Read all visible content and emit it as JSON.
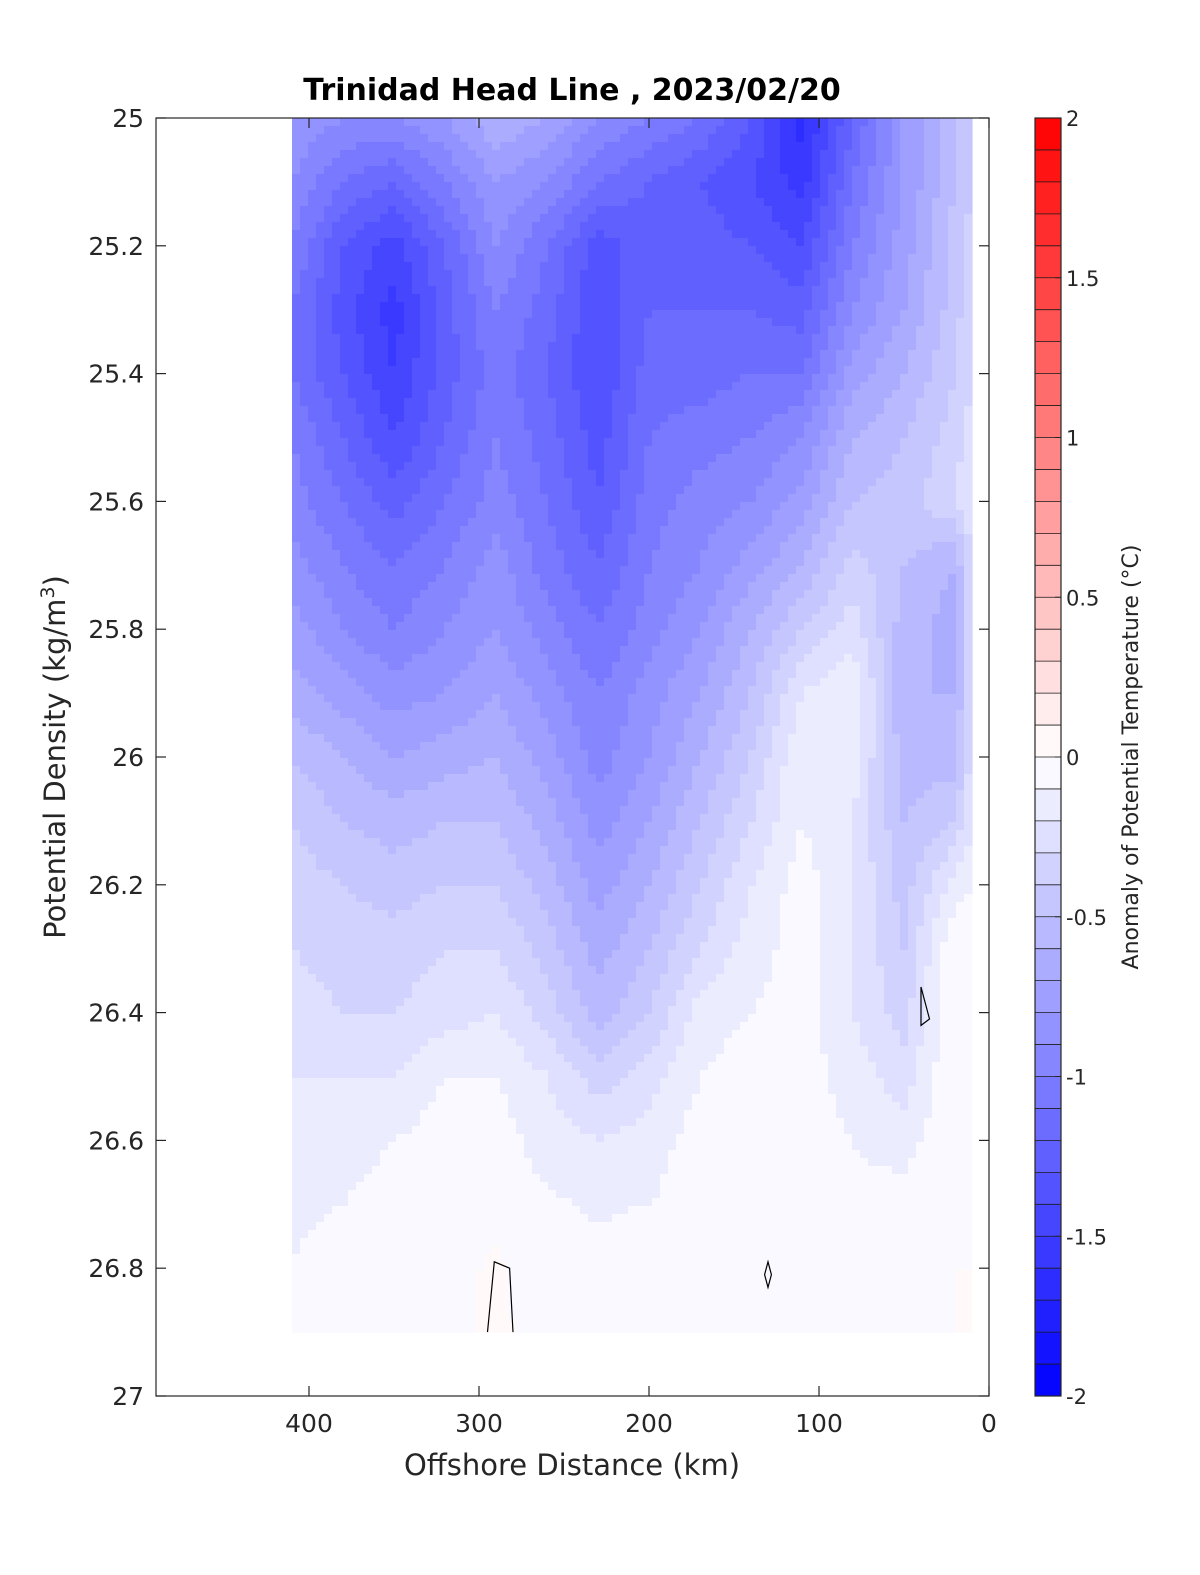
{
  "chart_data": {
    "type": "heatmap",
    "subtype": "filled-contour",
    "title": "Trinidad Head Line , 2023/02/20",
    "xlabel": "Offshore Distance (km)",
    "ylabel": "Potential Density (kg/m",
    "ylabel_sup": "3",
    "ylabel_close": ")",
    "colorbar_label": "Anomaly of Potential Temperature (°C)",
    "x_reversed": true,
    "y_reversed": true,
    "xlim": [
      490,
      0
    ],
    "ylim": [
      25,
      27
    ],
    "xticks": [
      400,
      300,
      200,
      100,
      0
    ],
    "yticks": [
      "25",
      "25.2",
      "25.4",
      "25.6",
      "25.8",
      "26",
      "26.2",
      "26.4",
      "26.6",
      "26.8",
      "27"
    ],
    "yticks_values": [
      25,
      25.2,
      25.4,
      25.6,
      25.8,
      26,
      26.2,
      26.4,
      26.6,
      26.8,
      27
    ],
    "colorbar": {
      "min": -2,
      "max": 2,
      "step": 0.1,
      "ticks": [
        "-2",
        "-1.5",
        "-1",
        "-0.5",
        "0",
        "0.5",
        "1",
        "1.5",
        "2"
      ],
      "ticks_values": [
        -2,
        -1.5,
        -1,
        -0.5,
        0,
        0.5,
        1,
        1.5,
        2
      ],
      "colormap": "blue-white-red",
      "min_color": "#0000ff",
      "mid_color": "#ffffff",
      "max_color": "#ff0000"
    },
    "data_extent": {
      "x_min": 10,
      "x_max": 410,
      "y_min": 25,
      "y_max": 26.9
    },
    "x": [
      410,
      380,
      350,
      320,
      290,
      260,
      230,
      200,
      170,
      140,
      110,
      80,
      50,
      20,
      10
    ],
    "y": [
      25.0,
      25.1,
      25.2,
      25.3,
      25.4,
      25.5,
      25.6,
      25.7,
      25.8,
      25.9,
      26.0,
      26.1,
      26.2,
      26.3,
      26.4,
      26.5,
      26.6,
      26.7,
      26.8,
      26.9
    ],
    "z": [
      [
        -0.8,
        -0.9,
        -0.9,
        -0.8,
        -0.6,
        -0.7,
        -0.9,
        -1.0,
        -1.1,
        -1.3,
        -1.65,
        -1.2,
        -0.8,
        -0.5,
        -0.4
      ],
      [
        -0.9,
        -1.1,
        -1.2,
        -1.0,
        -0.8,
        -0.9,
        -1.1,
        -1.2,
        -1.3,
        -1.4,
        -1.55,
        -1.1,
        -0.8,
        -0.5,
        -0.4
      ],
      [
        -1.0,
        -1.3,
        -1.45,
        -1.2,
        -0.9,
        -1.1,
        -1.35,
        -1.25,
        -1.25,
        -1.3,
        -1.4,
        -1.0,
        -0.75,
        -0.45,
        -0.35
      ],
      [
        -1.1,
        -1.35,
        -1.55,
        -1.25,
        -1.0,
        -1.15,
        -1.4,
        -1.2,
        -1.2,
        -1.2,
        -1.25,
        -0.9,
        -0.7,
        -0.45,
        -0.3
      ],
      [
        -1.1,
        -1.3,
        -1.5,
        -1.25,
        -1.05,
        -1.2,
        -1.4,
        -1.15,
        -1.15,
        -1.1,
        -1.1,
        -0.75,
        -0.6,
        -0.4,
        -0.3
      ],
      [
        -1.0,
        -1.2,
        -1.4,
        -1.2,
        -1.0,
        -1.15,
        -1.35,
        -1.1,
        -1.05,
        -1.0,
        -0.9,
        -0.6,
        -0.5,
        -0.35,
        -0.25
      ],
      [
        -0.95,
        -1.1,
        -1.25,
        -1.1,
        -0.95,
        -1.1,
        -1.3,
        -1.05,
        -0.95,
        -0.9,
        -0.75,
        -0.5,
        -0.45,
        -0.3,
        -0.2
      ],
      [
        -0.85,
        -1.0,
        -1.1,
        -1.0,
        -0.85,
        -1.05,
        -1.2,
        -1.0,
        -0.9,
        -0.75,
        -0.6,
        -0.35,
        -0.5,
        -0.6,
        -0.3
      ],
      [
        -0.75,
        -0.9,
        -1.0,
        -0.9,
        -0.8,
        -0.95,
        -1.1,
        -0.95,
        -0.8,
        -0.6,
        -0.4,
        -0.25,
        -0.55,
        -0.65,
        -0.3
      ],
      [
        -0.65,
        -0.75,
        -0.85,
        -0.8,
        -0.7,
        -0.85,
        -1.0,
        -0.85,
        -0.7,
        -0.5,
        -0.2,
        -0.1,
        -0.6,
        -0.6,
        -0.3
      ],
      [
        -0.5,
        -0.6,
        -0.7,
        -0.65,
        -0.6,
        -0.75,
        -0.95,
        -0.8,
        -0.6,
        -0.4,
        -0.1,
        -0.15,
        -0.55,
        -0.55,
        -0.25
      ],
      [
        -0.4,
        -0.5,
        -0.55,
        -0.5,
        -0.5,
        -0.65,
        -0.85,
        -0.7,
        -0.5,
        -0.3,
        -0.1,
        -0.2,
        -0.5,
        -0.4,
        -0.2
      ],
      [
        -0.35,
        -0.4,
        -0.45,
        -0.4,
        -0.4,
        -0.55,
        -0.75,
        -0.6,
        -0.4,
        -0.2,
        -0.05,
        -0.2,
        -0.45,
        -0.15,
        -0.1
      ],
      [
        -0.3,
        -0.35,
        -0.35,
        -0.3,
        -0.3,
        -0.45,
        -0.65,
        -0.5,
        -0.3,
        -0.15,
        -0.05,
        -0.2,
        -0.4,
        0.0,
        -0.05
      ],
      [
        -0.25,
        -0.3,
        -0.3,
        -0.25,
        -0.2,
        -0.35,
        -0.55,
        -0.4,
        -0.15,
        -0.1,
        -0.05,
        -0.2,
        -0.35,
        0.02,
        -0.05
      ],
      [
        -0.2,
        -0.2,
        -0.2,
        -0.1,
        -0.1,
        -0.2,
        -0.35,
        -0.25,
        -0.1,
        -0.05,
        -0.05,
        -0.15,
        -0.25,
        0.0,
        -0.05
      ],
      [
        -0.15,
        -0.15,
        -0.1,
        -0.05,
        -0.05,
        -0.15,
        -0.2,
        -0.15,
        -0.05,
        -0.02,
        -0.05,
        -0.1,
        -0.15,
        0.0,
        -0.02
      ],
      [
        -0.12,
        -0.1,
        -0.05,
        -0.03,
        -0.02,
        -0.08,
        -0.12,
        -0.1,
        -0.05,
        -0.03,
        -0.05,
        -0.08,
        -0.05,
        0.0,
        -0.02
      ],
      [
        -0.1,
        -0.05,
        0.0,
        -0.02,
        0.01,
        -0.03,
        -0.05,
        -0.02,
        -0.03,
        0.0,
        -0.05,
        -0.05,
        -0.02,
        0.0,
        0.0
      ],
      [
        -0.08,
        -0.05,
        0.0,
        -0.02,
        0.01,
        -0.02,
        -0.03,
        -0.02,
        -0.02,
        0.0,
        -0.02,
        -0.03,
        -0.01,
        0.0,
        0.0
      ]
    ]
  }
}
